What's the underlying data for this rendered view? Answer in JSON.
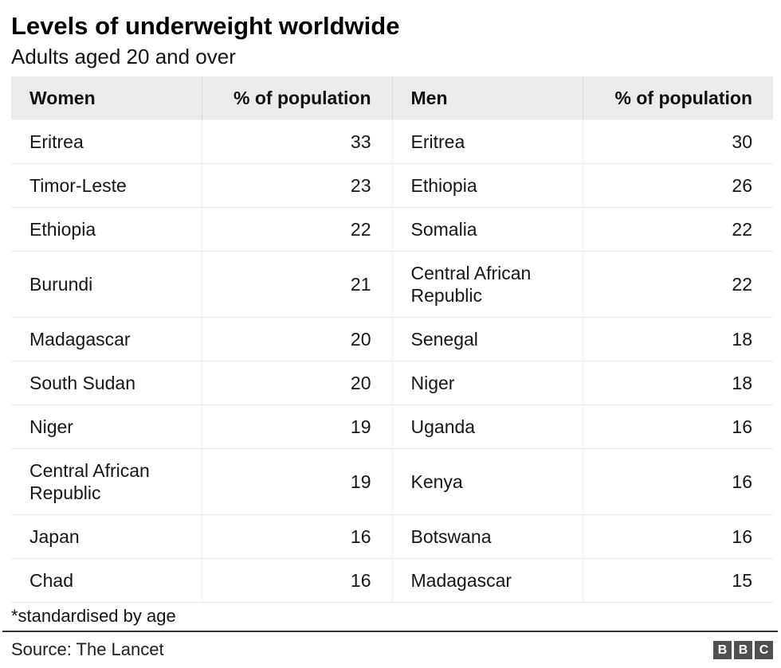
{
  "header": {
    "title": "Levels of underweight worldwide",
    "subtitle": "Adults aged 20 and over"
  },
  "table": {
    "columns": [
      "Women",
      "% of population",
      "Men",
      "% of population"
    ],
    "rows": [
      {
        "women": "Eritrea",
        "women_pct": "33",
        "men": "Eritrea",
        "men_pct": "30"
      },
      {
        "women": "Timor-Leste",
        "women_pct": "23",
        "men": "Ethiopia",
        "men_pct": "26"
      },
      {
        "women": "Ethiopia",
        "women_pct": "22",
        "men": "Somalia",
        "men_pct": "22"
      },
      {
        "women": "Burundi",
        "women_pct": "21",
        "men": "Central African Republic",
        "men_pct": "22"
      },
      {
        "women": "Madagascar",
        "women_pct": "20",
        "men": "Senegal",
        "men_pct": "18"
      },
      {
        "women": "South Sudan",
        "women_pct": "20",
        "men": "Niger",
        "men_pct": "18"
      },
      {
        "women": "Niger",
        "women_pct": "19",
        "men": "Uganda",
        "men_pct": "16"
      },
      {
        "women": "Central African Republic",
        "women_pct": "19",
        "men": "Kenya",
        "men_pct": "16"
      },
      {
        "women": "Japan",
        "women_pct": "16",
        "men": "Botswana",
        "men_pct": "16"
      },
      {
        "women": "Chad",
        "women_pct": "16",
        "men": "Madagascar",
        "men_pct": "15"
      }
    ]
  },
  "chart_data": {
    "type": "table",
    "title": "Levels of underweight worldwide",
    "subtitle": "Adults aged 20 and over",
    "columns": [
      "Women",
      "% of population",
      "Men",
      "% of population"
    ],
    "rows": [
      [
        "Eritrea",
        33,
        "Eritrea",
        30
      ],
      [
        "Timor-Leste",
        23,
        "Ethiopia",
        26
      ],
      [
        "Ethiopia",
        22,
        "Somalia",
        22
      ],
      [
        "Burundi",
        21,
        "Central African Republic",
        22
      ],
      [
        "Madagascar",
        20,
        "Senegal",
        18
      ],
      [
        "South Sudan",
        20,
        "Niger",
        18
      ],
      [
        "Niger",
        19,
        "Uganda",
        16
      ],
      [
        "Central African Republic",
        19,
        "Kenya",
        16
      ],
      [
        "Japan",
        16,
        "Botswana",
        16
      ],
      [
        "Chad",
        16,
        "Madagascar",
        15
      ]
    ],
    "footnote": "*standardised by age",
    "source": "The Lancet"
  },
  "footer": {
    "footnote": "*standardised by age",
    "source": "Source: The Lancet",
    "logo_letters": [
      "B",
      "B",
      "C"
    ]
  },
  "colors": {
    "header_background": "#ebebeb",
    "row_border": "#e9e9e9",
    "divider_rule": "#333333",
    "logo_background": "#505050",
    "text": "#161616"
  }
}
